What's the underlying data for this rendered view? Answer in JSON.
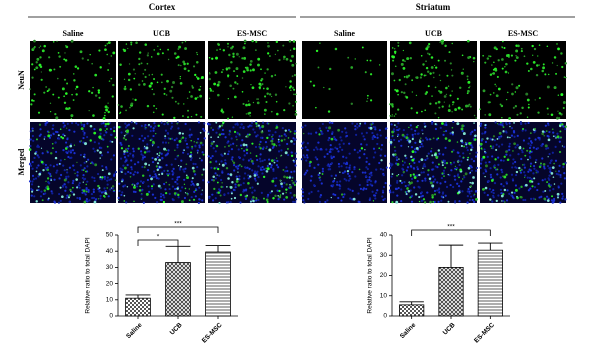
{
  "figure": {
    "panels": [
      {
        "region": "Cortex",
        "columns": [
          "Saline",
          "UCB",
          "ES-MSC"
        ]
      },
      {
        "region": "Striatum",
        "columns": [
          "Saline",
          "UCB",
          "ES-MSC"
        ]
      }
    ],
    "rows": [
      "NeuN",
      "Merged"
    ]
  },
  "chart_data": [
    {
      "type": "bar",
      "categories": [
        "Saline",
        "UCB",
        "ES-MSC"
      ],
      "values": [
        11,
        33,
        39.5
      ],
      "errors": [
        2,
        10,
        4
      ],
      "y_label": "Relative ratio to total DAPI",
      "ylim": [
        0,
        50
      ],
      "yticks": [
        0,
        10,
        20,
        30,
        40,
        50
      ],
      "annotations": [
        "*",
        "***"
      ],
      "color": "#000000"
    },
    {
      "type": "bar",
      "categories": [
        "Saline",
        "UCB",
        "ES-MSC"
      ],
      "values": [
        5.5,
        24,
        32.5
      ],
      "errors": [
        1.5,
        11,
        3.5
      ],
      "y_label": "Relative ratio to total DAPI",
      "ylim": [
        0,
        40
      ],
      "yticks": [
        0,
        10,
        20,
        30,
        40
      ],
      "annotations": [
        "***"
      ],
      "color": "#000000"
    }
  ]
}
